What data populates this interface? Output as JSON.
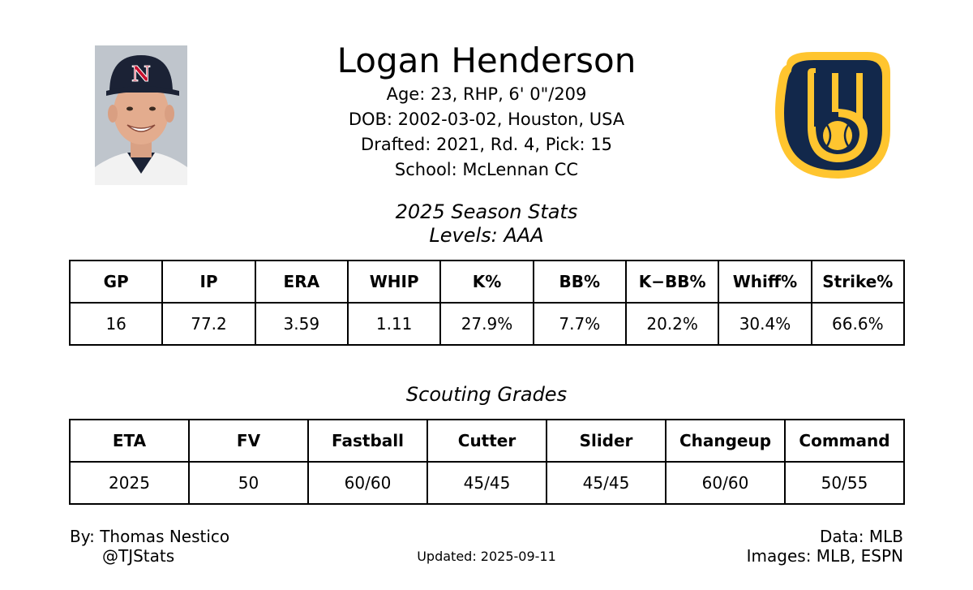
{
  "player": {
    "name": "Logan Henderson",
    "age_line": "Age: 23, RHP, 6' 0\"/209",
    "dob_line": "DOB: 2002-03-02, Houston, USA",
    "draft_line": "Drafted: 2021, Rd. 4, Pick: 15",
    "school_line": "School: McLennan CC"
  },
  "headshot": {
    "cap_letter": "N",
    "cap_color": "#1b2235",
    "letter_color": "#c8102e"
  },
  "logo": {
    "name": "brewers-ball-in-glove-logo",
    "navy": "#12284b",
    "gold": "#ffc52f"
  },
  "season": {
    "title": "2025 Season Stats",
    "levels": "Levels: AAA",
    "headers": [
      "GP",
      "IP",
      "ERA",
      "WHIP",
      "K%",
      "BB%",
      "K−BB%",
      "Whiff%",
      "Strike%"
    ],
    "values": [
      "16",
      "77.2",
      "3.59",
      "1.11",
      "27.9%",
      "7.7%",
      "20.2%",
      "30.4%",
      "66.6%"
    ]
  },
  "scouting": {
    "title": "Scouting Grades",
    "headers": [
      "ETA",
      "FV",
      "Fastball",
      "Cutter",
      "Slider",
      "Changeup",
      "Command"
    ],
    "values": [
      "2025",
      "50",
      "60/60",
      "45/45",
      "45/45",
      "60/60",
      "50/55"
    ]
  },
  "footer": {
    "by": "By: Thomas Nestico",
    "handle": "@TJStats",
    "updated": "Updated: 2025-09-11",
    "data": "Data: MLB",
    "images": "Images: MLB, ESPN"
  }
}
